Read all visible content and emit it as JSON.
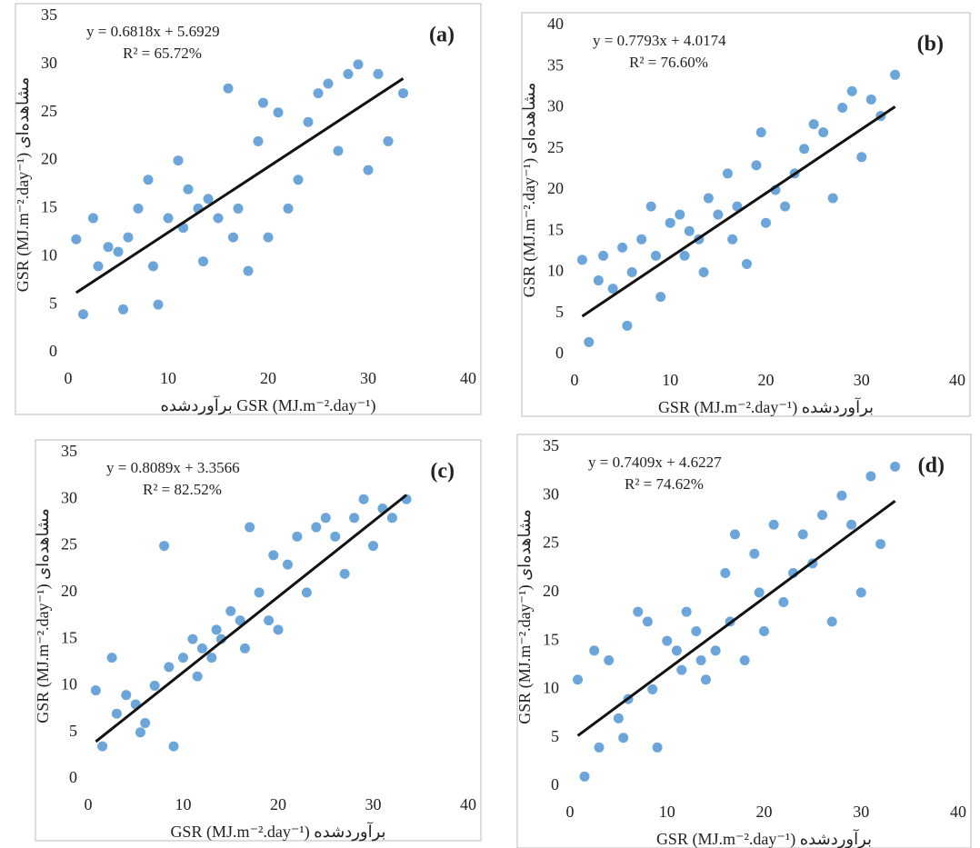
{
  "chart_data": [
    {
      "type": "scatter",
      "panel_label": "(a)",
      "equation": "y = 0.6818x + 5.6929",
      "r2_label": "R² = 65.72%",
      "trendline": {
        "slope": 0.6818,
        "intercept": 5.6929,
        "color": "#111111"
      },
      "x_label": "برآوردشده GSR (MJ.m⁻².day⁻¹)",
      "y_label": "GSR (MJ.m⁻².day⁻¹) مشاهده‌ای",
      "color": "#5b9bd5",
      "xlim": [
        0,
        40
      ],
      "xticks": [
        0,
        10,
        20,
        30,
        40
      ],
      "ylim": [
        0,
        35
      ],
      "yticks": [
        0,
        5,
        10,
        15,
        20,
        25,
        30,
        35
      ],
      "x": [
        0.8,
        1.5,
        2.5,
        3,
        4,
        5,
        5.5,
        6,
        7,
        8,
        8.5,
        9,
        10,
        11,
        11.5,
        12,
        13,
        13.5,
        14,
        15,
        16,
        16.5,
        17,
        18,
        19,
        19.5,
        20,
        21,
        22,
        23,
        24,
        25,
        26,
        27,
        28,
        29,
        30,
        31,
        32,
        33.5
      ],
      "y": [
        11.8,
        4,
        14,
        9,
        11,
        10.5,
        4.5,
        12,
        15,
        18,
        9,
        5,
        14,
        20,
        13,
        17,
        15,
        9.5,
        16,
        14,
        27.5,
        12,
        15,
        8.5,
        22,
        26,
        12,
        25,
        15,
        18,
        24,
        27,
        28,
        21,
        29,
        30,
        19,
        29,
        22,
        27
      ]
    },
    {
      "type": "scatter",
      "panel_label": "(b)",
      "equation": "y = 0.7793x + 4.0174",
      "r2_label": "R² = 76.60%",
      "trendline": {
        "slope": 0.7793,
        "intercept": 4.0174,
        "color": "#111111"
      },
      "x_label": "GSR (MJ.m⁻².day⁻¹) برآوردشده",
      "y_label": "GSR (MJ.m⁻².day⁻¹) مشاهده‌ای",
      "color": "#5b9bd5",
      "xlim": [
        0,
        40
      ],
      "xticks": [
        0,
        10,
        20,
        30,
        40
      ],
      "ylim": [
        0,
        40
      ],
      "yticks": [
        0,
        5,
        10,
        15,
        20,
        25,
        30,
        35,
        40
      ],
      "x": [
        0.8,
        1.5,
        2.5,
        3,
        4,
        5,
        5.5,
        6,
        7,
        8,
        8.5,
        9,
        10,
        11,
        11.5,
        12,
        13,
        13.5,
        14,
        15,
        16,
        16.5,
        17,
        18,
        19,
        19.5,
        20,
        21,
        22,
        23,
        24,
        25,
        26,
        27,
        28,
        29,
        30,
        31,
        32,
        33.5
      ],
      "y": [
        11.5,
        1.5,
        9,
        12,
        8,
        13,
        3.5,
        10,
        14,
        18,
        12,
        7,
        16,
        17,
        12,
        15,
        14,
        10,
        19,
        17,
        22,
        14,
        18,
        11,
        23,
        27,
        16,
        20,
        18,
        22,
        25,
        28,
        27,
        19,
        30,
        32,
        24,
        31,
        29,
        34
      ]
    },
    {
      "type": "scatter",
      "panel_label": "(c)",
      "equation": "y = 0.8089x + 3.3566",
      "r2_label": "R² = 82.52%",
      "trendline": {
        "slope": 0.8089,
        "intercept": 3.3566,
        "color": "#111111"
      },
      "x_label": "GSR (MJ.m⁻².day⁻¹) برآوردشده",
      "y_label": "GSR (MJ.m⁻².day⁻¹) مشاهده‌ای",
      "color": "#5b9bd5",
      "xlim": [
        0,
        40
      ],
      "xticks": [
        0,
        10,
        20,
        30,
        40
      ],
      "ylim": [
        0,
        35
      ],
      "yticks": [
        0,
        5,
        10,
        15,
        20,
        25,
        30,
        35
      ],
      "x": [
        0.8,
        1.5,
        2.5,
        3,
        4,
        5,
        5.5,
        6,
        7,
        8,
        8.5,
        9,
        10,
        11,
        11.5,
        12,
        13,
        13.5,
        14,
        15,
        16,
        16.5,
        17,
        18,
        19,
        19.5,
        20,
        21,
        22,
        23,
        24,
        25,
        26,
        27,
        28,
        29,
        30,
        31,
        32,
        33.5
      ],
      "y": [
        9.5,
        3.5,
        13,
        7,
        9,
        8,
        5,
        6,
        10,
        25,
        12,
        3.5,
        13,
        15,
        11,
        14,
        13,
        16,
        15,
        18,
        17,
        14,
        27,
        20,
        17,
        24,
        16,
        23,
        26,
        20,
        27,
        28,
        26,
        22,
        28,
        30,
        25,
        29,
        28,
        30
      ]
    },
    {
      "type": "scatter",
      "panel_label": "(d)",
      "equation": "y = 0.7409x + 4.6227",
      "r2_label": "R² = 74.62%",
      "trendline": {
        "slope": 0.7409,
        "intercept": 4.6227,
        "color": "#111111"
      },
      "x_label": "GSR (MJ.m⁻².day⁻¹) برآوردشده",
      "y_label": "GSR (MJ.m⁻².day⁻¹) مشاهده‌ای",
      "color": "#5b9bd5",
      "xlim": [
        0,
        40
      ],
      "xticks": [
        0,
        10,
        20,
        30,
        40
      ],
      "ylim": [
        0,
        35
      ],
      "yticks": [
        0,
        5,
        10,
        15,
        20,
        25,
        30,
        35
      ],
      "x": [
        0.8,
        1.5,
        2.5,
        3,
        4,
        5,
        5.5,
        6,
        7,
        8,
        8.5,
        9,
        10,
        11,
        11.5,
        12,
        13,
        13.5,
        14,
        15,
        16,
        16.5,
        17,
        18,
        19,
        19.5,
        20,
        21,
        22,
        23,
        24,
        25,
        26,
        27,
        28,
        29,
        30,
        31,
        32,
        33.5
      ],
      "y": [
        11,
        1,
        14,
        4,
        13,
        7,
        5,
        9,
        18,
        17,
        10,
        4,
        15,
        14,
        12,
        18,
        16,
        13,
        11,
        14,
        22,
        17,
        26,
        13,
        24,
        20,
        16,
        27,
        19,
        22,
        26,
        23,
        28,
        17,
        30,
        27,
        20,
        32,
        25,
        33
      ]
    }
  ]
}
